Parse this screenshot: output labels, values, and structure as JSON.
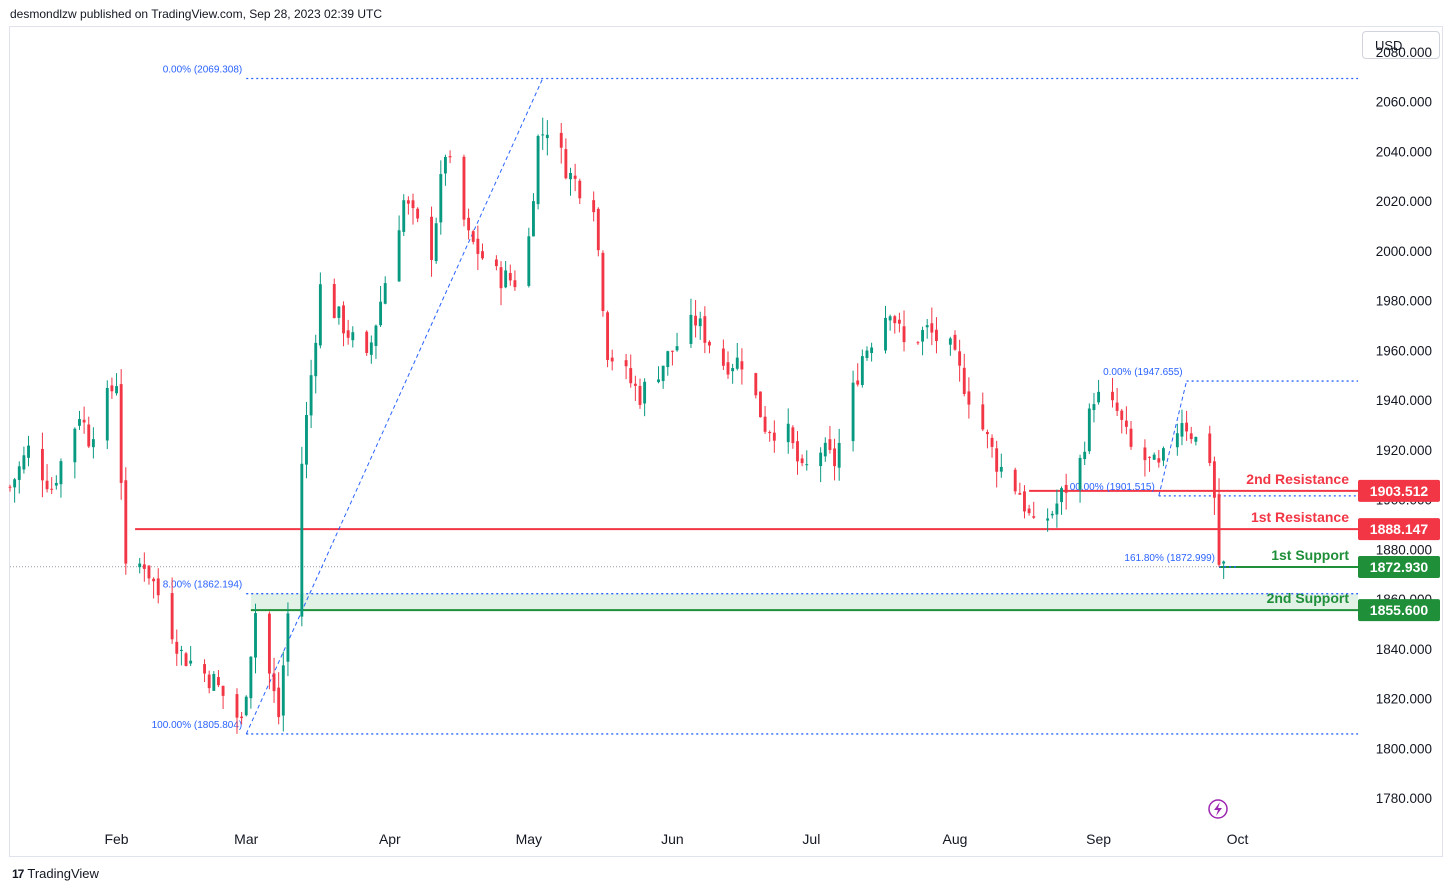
{
  "header": {
    "publisher": "desmondlzw published on TradingView.com, Sep 28, 2023 02:39 UTC"
  },
  "currency_button": "USD",
  "footer": {
    "brand": "TradingView"
  },
  "colors": {
    "up": "#089981",
    "down": "#f23645",
    "resistance": "#f23645",
    "support": "#1f8f3a",
    "fib": "#2962ff",
    "fib_text": "#2962ff",
    "zone": "#dcefe0"
  },
  "chart_data": {
    "type": "candlestick",
    "title": "",
    "ylim": [
      1770,
      2090
    ],
    "y_ticks": [
      1780,
      1800,
      1820,
      1840,
      1860,
      1880,
      1900,
      1920,
      1940,
      1960,
      1980,
      2000,
      2020,
      2040,
      2060,
      2080
    ],
    "y_tick_labels": [
      "1780.000",
      "1800.000",
      "1820.000",
      "1840.000",
      "1860.000",
      "1880.000",
      "1900.000",
      "1920.000",
      "1940.000",
      "1960.000",
      "1980.000",
      "2000.000",
      "2020.000",
      "2040.000",
      "2060.000",
      "2080.000"
    ],
    "x_range": [
      "2023-01-09",
      "2023-10-27"
    ],
    "month_labels": [
      {
        "label": "Feb",
        "date": "2023-02-01"
      },
      {
        "label": "Mar",
        "date": "2023-03-01"
      },
      {
        "label": "Apr",
        "date": "2023-04-01"
      },
      {
        "label": "May",
        "date": "2023-05-01"
      },
      {
        "label": "Jun",
        "date": "2023-06-01"
      },
      {
        "label": "Jul",
        "date": "2023-07-01"
      },
      {
        "label": "Aug",
        "date": "2023-08-01"
      },
      {
        "label": "Sep",
        "date": "2023-09-01"
      },
      {
        "label": "Oct",
        "date": "2023-10-01"
      }
    ],
    "price_anchors": [
      [
        "2023-01-09",
        1905
      ],
      [
        "2023-01-13",
        1920
      ],
      [
        "2023-01-18",
        1905
      ],
      [
        "2023-01-24",
        1935
      ],
      [
        "2023-01-26",
        1925
      ],
      [
        "2023-02-01",
        1948
      ],
      [
        "2023-02-03",
        1870
      ],
      [
        "2023-02-07",
        1875
      ],
      [
        "2023-02-10",
        1862
      ],
      [
        "2023-02-15",
        1838
      ],
      [
        "2023-02-22",
        1827
      ],
      [
        "2023-02-28",
        1810
      ],
      [
        "2023-03-03",
        1855
      ],
      [
        "2023-03-08",
        1813
      ],
      [
        "2023-03-13",
        1915
      ],
      [
        "2023-03-17",
        1985
      ],
      [
        "2023-03-22",
        1970
      ],
      [
        "2023-03-27",
        1955
      ],
      [
        "2023-03-30",
        1980
      ],
      [
        "2023-04-04",
        2020
      ],
      [
        "2023-04-10",
        2000
      ],
      [
        "2023-04-13",
        2040
      ],
      [
        "2023-04-18",
        2005
      ],
      [
        "2023-04-24",
        1990
      ],
      [
        "2023-04-28",
        1988
      ],
      [
        "2023-05-01",
        2005
      ],
      [
        "2023-05-03",
        2045
      ],
      [
        "2023-05-05",
        2050
      ],
      [
        "2023-05-10",
        2030
      ],
      [
        "2023-05-15",
        2020
      ],
      [
        "2023-05-18",
        1960
      ],
      [
        "2023-05-25",
        1942
      ],
      [
        "2023-06-01",
        1960
      ],
      [
        "2023-06-06",
        1972
      ],
      [
        "2023-06-12",
        1955
      ],
      [
        "2023-06-16",
        1956
      ],
      [
        "2023-06-21",
        1930
      ],
      [
        "2023-06-26",
        1926
      ],
      [
        "2023-06-29",
        1910
      ],
      [
        "2023-07-03",
        1920
      ],
      [
        "2023-07-06",
        1915
      ],
      [
        "2023-07-12",
        1958
      ],
      [
        "2023-07-18",
        1978
      ],
      [
        "2023-07-21",
        1962
      ],
      [
        "2023-07-26",
        1968
      ],
      [
        "2023-07-31",
        1960
      ],
      [
        "2023-08-04",
        1942
      ],
      [
        "2023-08-10",
        1915
      ],
      [
        "2023-08-15",
        1903
      ],
      [
        "2023-08-18",
        1888
      ],
      [
        "2023-08-22",
        1895
      ],
      [
        "2023-08-28",
        1915
      ],
      [
        "2023-08-31",
        1942
      ],
      [
        "2023-09-05",
        1935
      ],
      [
        "2023-09-08",
        1920
      ],
      [
        "2023-09-14",
        1912
      ],
      [
        "2023-09-19",
        1933
      ],
      [
        "2023-09-22",
        1924
      ],
      [
        "2023-09-25",
        1917
      ],
      [
        "2023-09-26",
        1901
      ],
      [
        "2023-09-27",
        1874
      ],
      [
        "2023-09-28",
        1873
      ]
    ],
    "horizontal_levels": [
      {
        "label": "2nd Resistance",
        "price_label": "1903.512",
        "value": 1903.512,
        "kind": "resistance",
        "from": "2023-08-17"
      },
      {
        "label": "1st Resistance",
        "price_label": "1888.147",
        "value": 1888.147,
        "kind": "resistance",
        "from": "2023-02-05"
      },
      {
        "label": "1st Support",
        "price_label": "1872.930",
        "value": 1872.93,
        "kind": "support",
        "from": "2023-09-27"
      },
      {
        "label": "2nd Support",
        "price_label": "1855.600",
        "value": 1855.6,
        "kind": "support",
        "from": "2023-03-02"
      }
    ],
    "support_zone": {
      "from": "2023-03-02",
      "low": 1855.6,
      "high": 1862.194
    },
    "fib_lines": [
      {
        "label": "0.00% (2069.308)",
        "value": 2069.308,
        "from": "2023-03-01",
        "to": "2023-10-27"
      },
      {
        "label": "100.00% (1805.804)",
        "value": 1805.804,
        "from": "2023-03-01",
        "to": "2023-10-27"
      },
      {
        "label": "8.00% (1862.194)",
        "value": 1862.194,
        "from": "2023-03-01",
        "to": "2023-10-27"
      },
      {
        "label": "0.00% (1947.655)",
        "value": 1947.655,
        "from": "2023-09-20",
        "to": "2023-10-27"
      },
      {
        "label": "00.00% (1901.515)",
        "value": 1901.515,
        "from": "2023-09-14",
        "to": "2023-10-27"
      },
      {
        "label": "161.80% (1872.999)",
        "value": 1872.999,
        "from": "2023-09-27",
        "to": "2023-10-01"
      }
    ],
    "trend_lines": [
      {
        "from": [
          "2023-03-01",
          1805.8
        ],
        "to": [
          "2023-05-04",
          2069.3
        ]
      },
      {
        "from": [
          "2023-09-14",
          1901.5
        ],
        "to": [
          "2023-09-20",
          1947.7
        ]
      }
    ],
    "last_price_guide": 1873
  }
}
